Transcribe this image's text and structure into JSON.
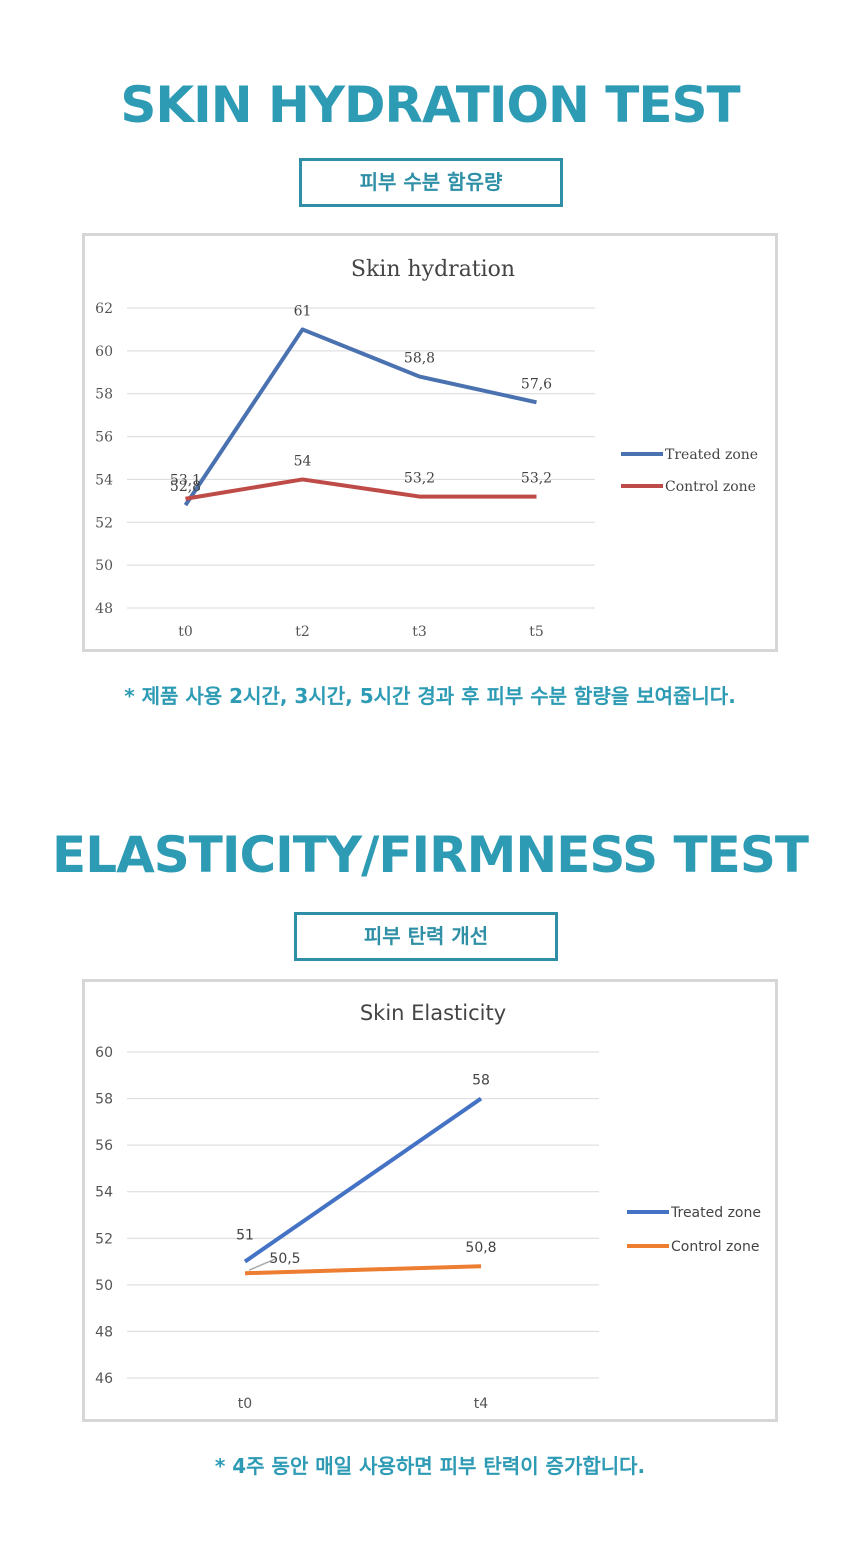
{
  "section1": {
    "title": "SKIN HYDRATION TEST",
    "subtitle": "피부 수분 함유량",
    "note": "* 제품 사용 2시간, 3시간, 5시간 경과 후 피부 수분 함량을 보여줍니다."
  },
  "section2": {
    "title": "ELASTICITY/FIRMNESS TEST",
    "subtitle": "피부 탄력 개선",
    "note": "* 4주 동안 매일 사용하면 피부 탄력이 증가합니다."
  },
  "chart_data": [
    {
      "type": "line",
      "title": "Skin hydration",
      "categories": [
        "t0",
        "t2",
        "t3",
        "t5"
      ],
      "ylim": [
        48,
        62
      ],
      "yticks": [
        48,
        50,
        52,
        54,
        56,
        58,
        60,
        62
      ],
      "grid": true,
      "legend": "right",
      "series": [
        {
          "name": "Treated zone",
          "color": "#4a72b0",
          "values": [
            52.8,
            61,
            58.8,
            57.6
          ],
          "labels": [
            "52,8",
            "61",
            "58,8",
            "57,6"
          ]
        },
        {
          "name": "Control zone",
          "color": "#be4b48",
          "values": [
            53.1,
            54,
            53.2,
            53.2
          ],
          "labels": [
            "53,1",
            "54",
            "53,2",
            "53,2"
          ]
        }
      ]
    },
    {
      "type": "line",
      "title": "Skin Elasticity",
      "categories": [
        "t0",
        "t4"
      ],
      "ylim": [
        46,
        60
      ],
      "yticks": [
        46,
        48,
        50,
        52,
        54,
        56,
        58,
        60
      ],
      "grid": true,
      "legend": "right",
      "series": [
        {
          "name": "Treated zone",
          "color": "#4472c4",
          "values": [
            51,
            58
          ],
          "labels": [
            "51",
            "58"
          ]
        },
        {
          "name": "Control zone",
          "color": "#ed7d31",
          "values": [
            50.5,
            50.8
          ],
          "labels": [
            "50,5",
            "50,8"
          ]
        }
      ]
    }
  ]
}
